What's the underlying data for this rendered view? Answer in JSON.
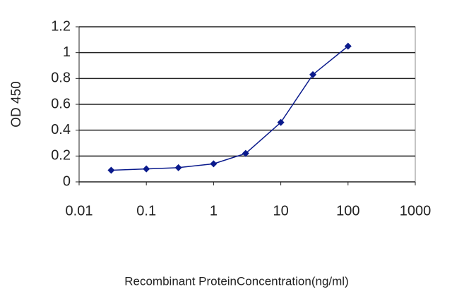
{
  "chart_data": {
    "type": "line",
    "x_label": "Recombinant ProteinConcentration(ng/ml)",
    "y_label": "OD 450",
    "x": [
      0.03,
      0.1,
      0.3,
      1,
      3,
      10,
      30,
      100
    ],
    "series": [
      {
        "name": "OD 450",
        "color": "#0a1a8c",
        "values": [
          0.09,
          0.1,
          0.11,
          0.14,
          0.22,
          0.46,
          0.83,
          1.05
        ]
      }
    ],
    "xscale": "log",
    "xlim": [
      0.01,
      1000
    ],
    "xticks": [
      0.01,
      0.1,
      1,
      10,
      100,
      1000
    ],
    "ylim": [
      0,
      1.2
    ],
    "yticks": [
      0,
      0.2,
      0.4,
      0.6,
      0.8,
      1,
      1.2
    ],
    "grid": true
  }
}
